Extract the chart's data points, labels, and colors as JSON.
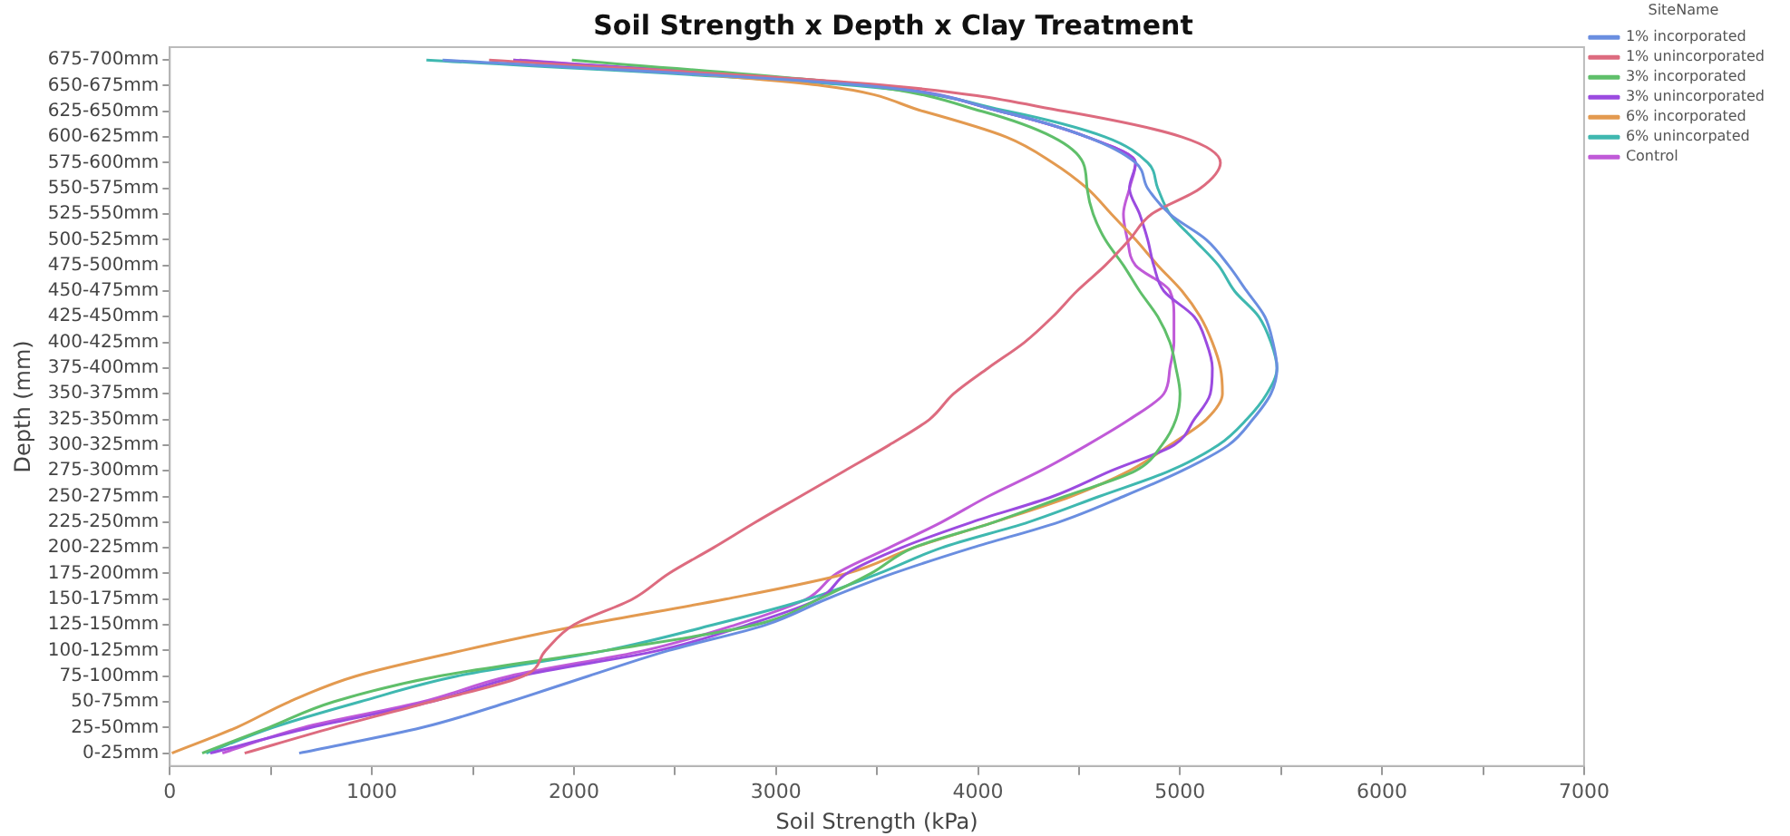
{
  "chart_data": {
    "type": "line",
    "orientation": "horizontal",
    "title": "Soil Strength x Depth x Clay Treatment",
    "xlabel": "Soil Strength (kPa)",
    "ylabel": "Depth (mm)",
    "legend_title": "SiteName",
    "legend": "top right",
    "categories": [
      "675-700mm",
      "650-675mm",
      "625-650mm",
      "600-625mm",
      "575-600mm",
      "550-575mm",
      "525-550mm",
      "500-525mm",
      "475-500mm",
      "450-475mm",
      "425-450mm",
      "400-425mm",
      "375-400mm",
      "350-375mm",
      "325-350mm",
      "300-325mm",
      "275-300mm",
      "250-275mm",
      "225-250mm",
      "200-225mm",
      "175-200mm",
      "150-175mm",
      "125-150mm",
      "100-125mm",
      "75-100mm",
      "50-75mm",
      "25-50mm",
      "0-25mm"
    ],
    "xlim": [
      0,
      7000
    ],
    "xticks": [
      0,
      {
        "value": 500,
        "label": null
      },
      1000,
      {
        "value": 1500,
        "label": null
      },
      2000,
      {
        "value": 2500,
        "label": null
      },
      3000,
      {
        "value": 3500,
        "label": null
      },
      4000,
      {
        "value": 4500,
        "label": null
      },
      5000,
      {
        "value": 5500,
        "label": null
      },
      6000,
      {
        "value": 6500,
        "label": null
      },
      7000
    ],
    "series": [
      {
        "name": "1% incorporated",
        "color": "#6a8ee0",
        "values": [
          1350,
          3450,
          4110,
          4540,
          4780,
          4840,
          4950,
          5130,
          5240,
          5330,
          5420,
          5460,
          5480,
          5450,
          5360,
          5240,
          5010,
          4720,
          4400,
          3970,
          3580,
          3250,
          2950,
          2470,
          2070,
          1680,
          1250,
          640
        ]
      },
      {
        "name": "1% unincorporated",
        "color": "#dd6b7f",
        "values": [
          1580,
          3560,
          4430,
          5010,
          5200,
          5100,
          4860,
          4750,
          4630,
          4490,
          4370,
          4230,
          4050,
          3880,
          3760,
          3560,
          3340,
          3120,
          2900,
          2690,
          2470,
          2290,
          2000,
          1860,
          1750,
          1290,
          810,
          370
        ]
      },
      {
        "name": "3% incorporated",
        "color": "#5fbf6a",
        "values": [
          1990,
          3450,
          4020,
          4370,
          4520,
          4540,
          4570,
          4630,
          4720,
          4800,
          4890,
          4950,
          4980,
          5000,
          4980,
          4910,
          4780,
          4430,
          4080,
          3680,
          3470,
          3210,
          2900,
          2160,
          1330,
          810,
          490,
          160
        ]
      },
      {
        "name": "3% unincorporated",
        "color": "#9b4be0",
        "values": [
          1700,
          3480,
          4110,
          4540,
          4780,
          4750,
          4800,
          4840,
          4870,
          4920,
          5070,
          5130,
          5160,
          5150,
          5070,
          4970,
          4660,
          4370,
          3970,
          3620,
          3350,
          3210,
          2860,
          2420,
          1730,
          1290,
          700,
          200
        ]
      },
      {
        "name": "6% incorporated",
        "color": "#e39a50",
        "values": [
          1700,
          3230,
          3730,
          4140,
          4370,
          4540,
          4660,
          4780,
          4890,
          5010,
          5100,
          5160,
          5200,
          5210,
          5130,
          4950,
          4750,
          4460,
          4080,
          3680,
          3350,
          2750,
          2050,
          1450,
          920,
          590,
          330,
          10
        ]
      },
      {
        "name": "6% unincorpated",
        "color": "#3fb8b0",
        "values": [
          1270,
          3400,
          4150,
          4630,
          4840,
          4890,
          4950,
          5070,
          5190,
          5270,
          5390,
          5450,
          5480,
          5430,
          5330,
          5190,
          4950,
          4600,
          4250,
          3820,
          3510,
          3160,
          2690,
          2160,
          1420,
          940,
          510,
          180
        ]
      },
      {
        "name": "Control",
        "color": "#c05ad8",
        "values": [
          1730,
          3500,
          4110,
          4540,
          4780,
          4750,
          4720,
          4740,
          4780,
          4950,
          4970,
          4970,
          4950,
          4920,
          4750,
          4540,
          4310,
          4050,
          3820,
          3560,
          3300,
          3150,
          2800,
          2350,
          1680,
          1250,
          660,
          260
        ]
      }
    ]
  }
}
